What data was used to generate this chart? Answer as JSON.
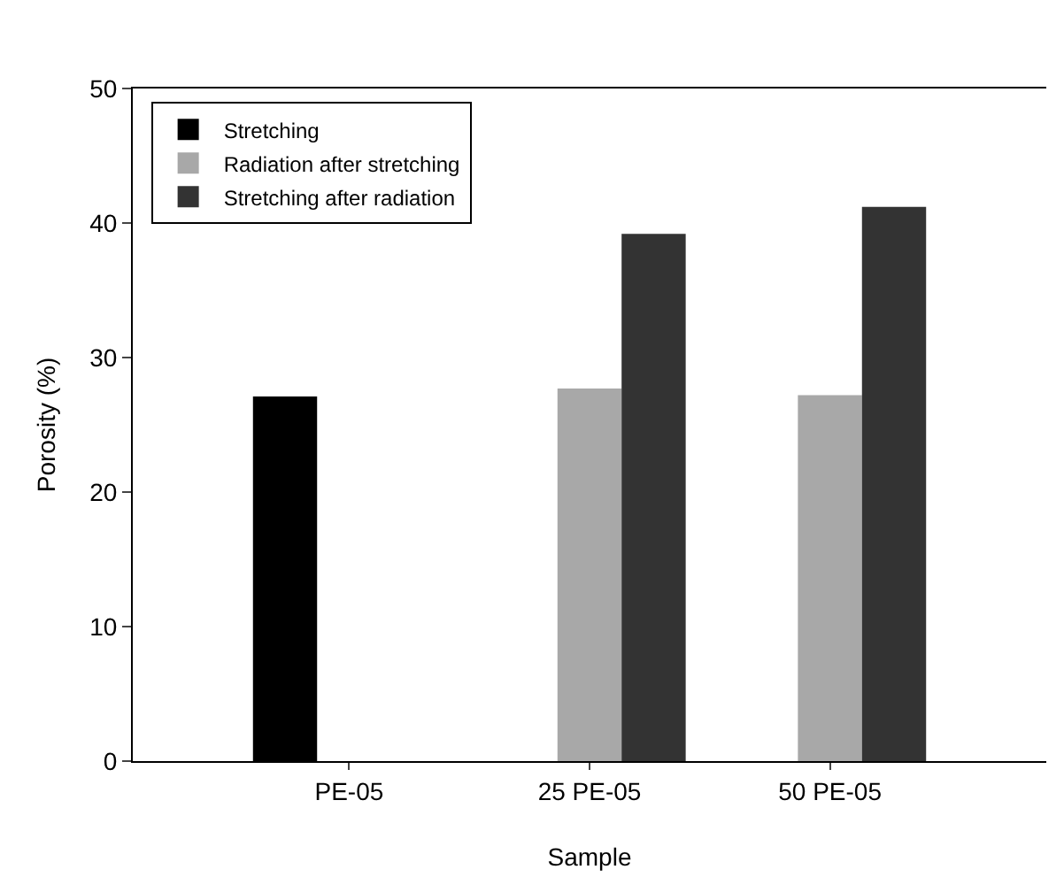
{
  "chart_data": {
    "type": "bar",
    "xlabel": "Sample",
    "ylabel": "Porosity (%)",
    "categories": [
      "PE-05",
      "25 PE-05",
      "50 PE-05"
    ],
    "series": [
      {
        "name": "Stretching",
        "color": "#000000",
        "values": [
          27.1,
          null,
          null
        ]
      },
      {
        "name": "Radiation after stretching",
        "color": "#a8a8a8",
        "values": [
          null,
          27.7,
          27.2
        ]
      },
      {
        "name": "Stretching after radiation",
        "color": "#333333",
        "values": [
          null,
          39.2,
          41.2
        ]
      }
    ],
    "ylim": [
      0,
      50
    ],
    "yticks": [
      0,
      10,
      20,
      30,
      40,
      50
    ],
    "grid": false,
    "legend": "top left"
  }
}
